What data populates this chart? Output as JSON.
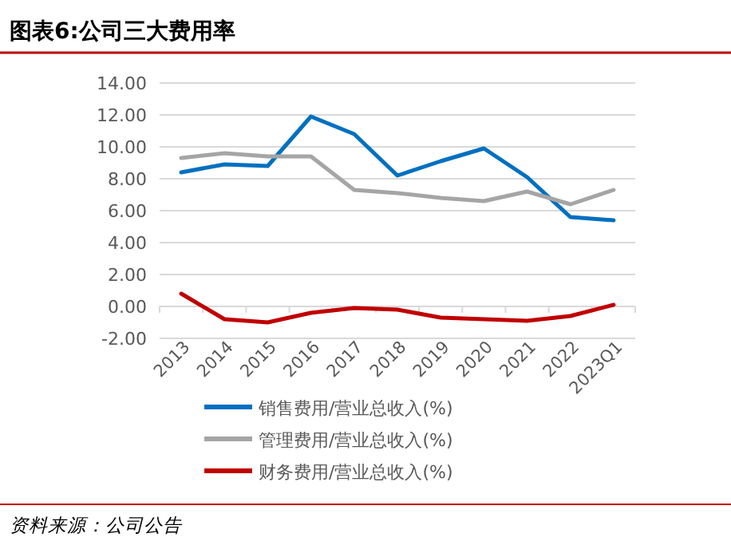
{
  "chart_data": {
    "type": "line",
    "title": "图表6:公司三大费用率",
    "categories": [
      "2013",
      "2014",
      "2015",
      "2016",
      "2017",
      "2018",
      "2019",
      "2020",
      "2021",
      "2022",
      "2023Q1"
    ],
    "series": [
      {
        "name": "销售费用/营业总收入(%)",
        "color": "#0070c0",
        "values": [
          8.4,
          8.9,
          8.8,
          11.9,
          10.8,
          8.2,
          9.1,
          9.9,
          8.1,
          5.6,
          5.4
        ]
      },
      {
        "name": "管理费用/营业总收入(%)",
        "color": "#a5a5a5",
        "values": [
          9.3,
          9.6,
          9.4,
          9.4,
          7.3,
          7.1,
          6.8,
          6.6,
          7.2,
          6.4,
          7.3
        ]
      },
      {
        "name": "财务费用/营业总收入(%)",
        "color": "#c00000",
        "values": [
          0.8,
          -0.8,
          -1.0,
          -0.4,
          -0.1,
          -0.2,
          -0.7,
          -0.8,
          -0.9,
          -0.6,
          0.1
        ]
      }
    ],
    "ylim": [
      -2,
      14
    ],
    "yticks": [
      {
        "value": -2,
        "label": "-2.00"
      },
      {
        "value": 0,
        "label": "0.00"
      },
      {
        "value": 2,
        "label": "2.00"
      },
      {
        "value": 4,
        "label": "4.00"
      },
      {
        "value": 6,
        "label": "6.00"
      },
      {
        "value": 8,
        "label": "8.00"
      },
      {
        "value": 10,
        "label": "10.00"
      },
      {
        "value": 12,
        "label": "12.00"
      },
      {
        "value": 14,
        "label": "14.00"
      }
    ],
    "grid": "y",
    "legend": "bottom",
    "marker": "none",
    "line_style": "solid",
    "annotations": [
      "资料来源：公司公告"
    ]
  }
}
